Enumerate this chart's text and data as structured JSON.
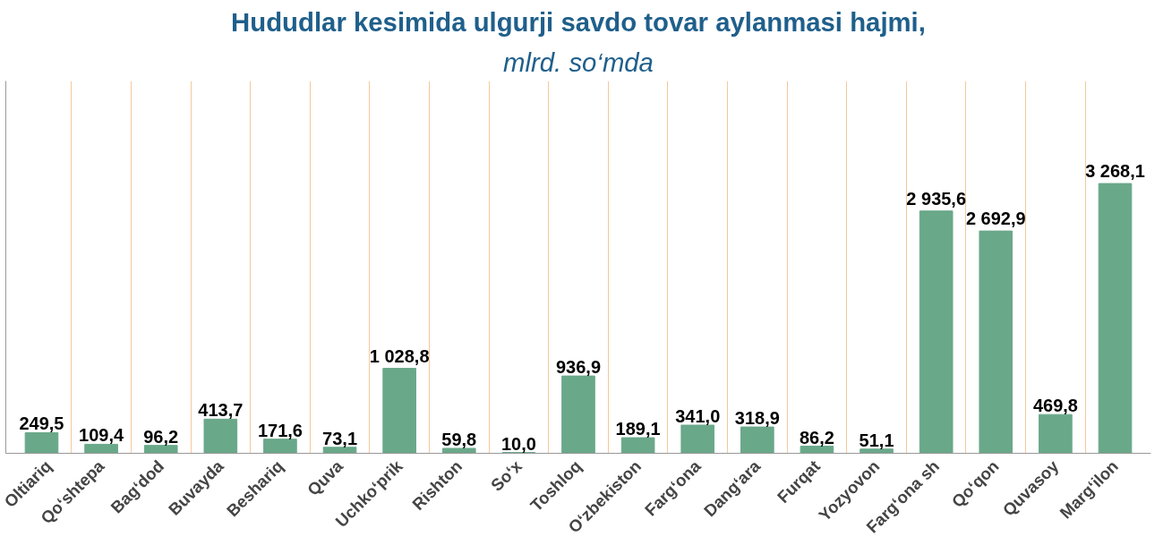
{
  "chart_data": {
    "type": "bar",
    "title": "Hududlar kesimida ulgurji savdo tovar aylanmasi hajmi,",
    "subtitle": "mlrd. so‘mda",
    "categories": [
      "Oltiariq",
      "Qo‘shtepa",
      "Bag‘dod",
      "Buvayda",
      "Beshariq",
      "Quva",
      "Uchko‘prik",
      "Rishton",
      "So‘x",
      "Toshloq",
      "O‘zbekiston",
      "Farg‘ona",
      "Dang‘ara",
      "Furqat",
      "Yozyovon",
      "Farg‘ona sh",
      "Qo‘qon",
      "Quvasoy",
      "Marg‘ilon"
    ],
    "values": [
      249.5,
      109.4,
      96.2,
      413.7,
      171.6,
      73.1,
      1028.8,
      59.8,
      10.0,
      936.9,
      189.1,
      341.0,
      318.9,
      86.2,
      51.1,
      2935.6,
      2692.9,
      469.8,
      3268.1
    ],
    "value_labels": [
      "249,5",
      "109,4",
      "96,2",
      "413,7",
      "171,6",
      "73,1",
      "1 028,8",
      "59,8",
      "10,0",
      "936,9",
      "189,1",
      "341,0",
      "318,9",
      "86,2",
      "51,1",
      "2 935,6",
      "2 692,9",
      "469,8",
      "3 268,1"
    ],
    "color": "#6aa88a",
    "grid": "x"
  }
}
